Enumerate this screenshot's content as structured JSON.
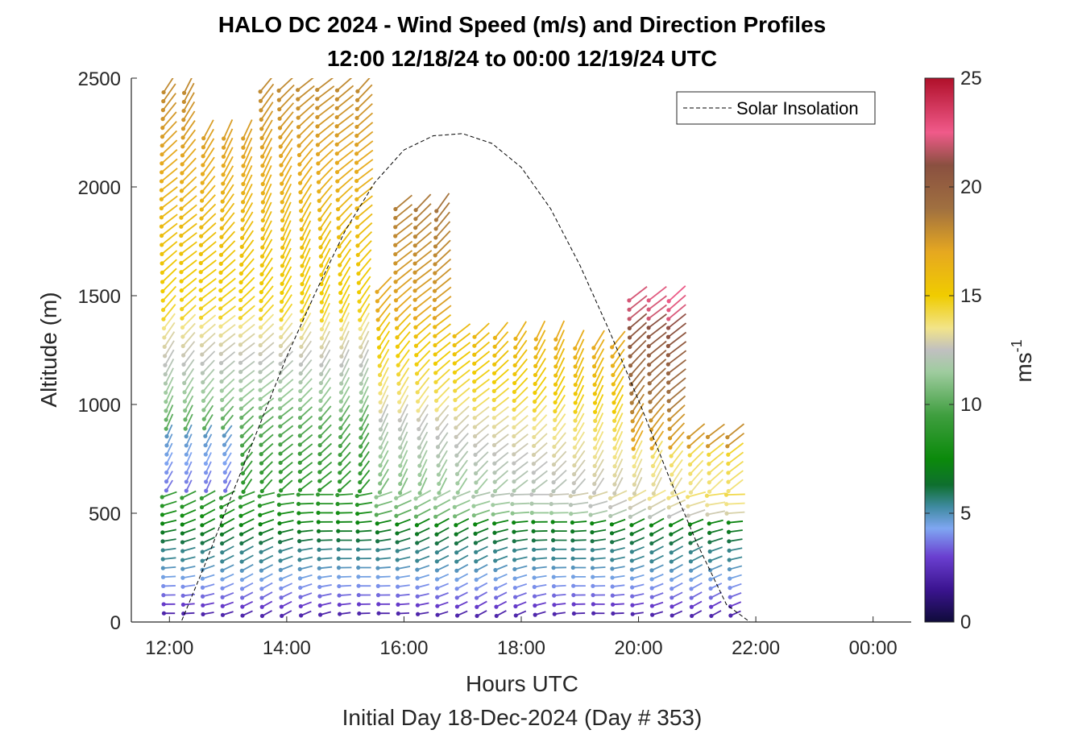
{
  "chart_data": {
    "type": "wind-barb-profile",
    "title": "HALO DC 2024 - Wind Speed (m/s) and Direction Profiles",
    "subtitle": "12:00 12/18/24 to 00:00 12/19/24  UTC",
    "xlabel": "Hours UTC",
    "ylabel": "Altitude (m)",
    "footer": "Initial Day 18-Dec-2024 (Day # 353)",
    "x_unit": "hours UTC",
    "xlim": [
      11.35,
      24.65
    ],
    "ylim": [
      0,
      2500
    ],
    "x_ticks": [
      {
        "value": 12,
        "label": "12:00"
      },
      {
        "value": 14,
        "label": "14:00"
      },
      {
        "value": 16,
        "label": "16:00"
      },
      {
        "value": 18,
        "label": "18:00"
      },
      {
        "value": 20,
        "label": "20:00"
      },
      {
        "value": 22,
        "label": "22:00"
      },
      {
        "value": 24,
        "label": "00:00"
      }
    ],
    "y_ticks": [
      {
        "value": 0,
        "label": "0"
      },
      {
        "value": 500,
        "label": "500"
      },
      {
        "value": 1000,
        "label": "1000"
      },
      {
        "value": 1500,
        "label": "1500"
      },
      {
        "value": 2000,
        "label": "2000"
      },
      {
        "value": 2500,
        "label": "2500"
      }
    ],
    "colorbar": {
      "label": "ms",
      "label_exponent": "-1",
      "range": [
        0,
        25
      ],
      "ticks": [
        {
          "value": 0,
          "label": "0"
        },
        {
          "value": 5,
          "label": "5"
        },
        {
          "value": 10,
          "label": "10"
        },
        {
          "value": 15,
          "label": "15"
        },
        {
          "value": 20,
          "label": "20"
        },
        {
          "value": 25,
          "label": "25"
        }
      ],
      "stops": [
        {
          "v": 0,
          "color": "#0f0b3a"
        },
        {
          "v": 1.5,
          "color": "#3b1490"
        },
        {
          "v": 3.0,
          "color": "#6a3fd0"
        },
        {
          "v": 4.3,
          "color": "#7fa6f2"
        },
        {
          "v": 5.3,
          "color": "#3f8aa0"
        },
        {
          "v": 6.3,
          "color": "#0e6f2e"
        },
        {
          "v": 7.5,
          "color": "#0b8a0b"
        },
        {
          "v": 9.5,
          "color": "#3f9e3f"
        },
        {
          "v": 11.5,
          "color": "#9fcc9f"
        },
        {
          "v": 12.5,
          "color": "#c0c0c0"
        },
        {
          "v": 13.5,
          "color": "#f2e48a"
        },
        {
          "v": 15,
          "color": "#f0cc00"
        },
        {
          "v": 17,
          "color": "#e6a820"
        },
        {
          "v": 19,
          "color": "#a07040"
        },
        {
          "v": 21,
          "color": "#8a5040"
        },
        {
          "v": 22.5,
          "color": "#f05a8a"
        },
        {
          "v": 25,
          "color": "#b0102a"
        }
      ]
    },
    "legend": {
      "entries": [
        "Solar Insolation"
      ],
      "placement": "top-right",
      "line_style": "dashed"
    },
    "series": [
      {
        "name": "Solar Insolation",
        "kind": "dashed-line",
        "x": [
          11.35,
          12.2,
          12.6,
          13.0,
          13.5,
          14.0,
          14.5,
          15.0,
          15.5,
          16.0,
          16.5,
          17.0,
          17.5,
          18.0,
          18.5,
          19.0,
          19.5,
          20.0,
          20.5,
          21.0,
          21.5,
          21.9,
          24.65
        ],
        "y_alt": [
          0,
          0,
          260,
          540,
          880,
          1220,
          1520,
          1800,
          2020,
          2170,
          2235,
          2245,
          2200,
          2090,
          1900,
          1640,
          1340,
          1020,
          680,
          360,
          80,
          0,
          0
        ]
      }
    ],
    "profiles_summary": {
      "start_hour": 12.0,
      "end_hour": 21.6,
      "profile_interval_hours": 0.333,
      "barbs": "wind direction and speed arrows at each altitude level, colored by speed"
    }
  }
}
